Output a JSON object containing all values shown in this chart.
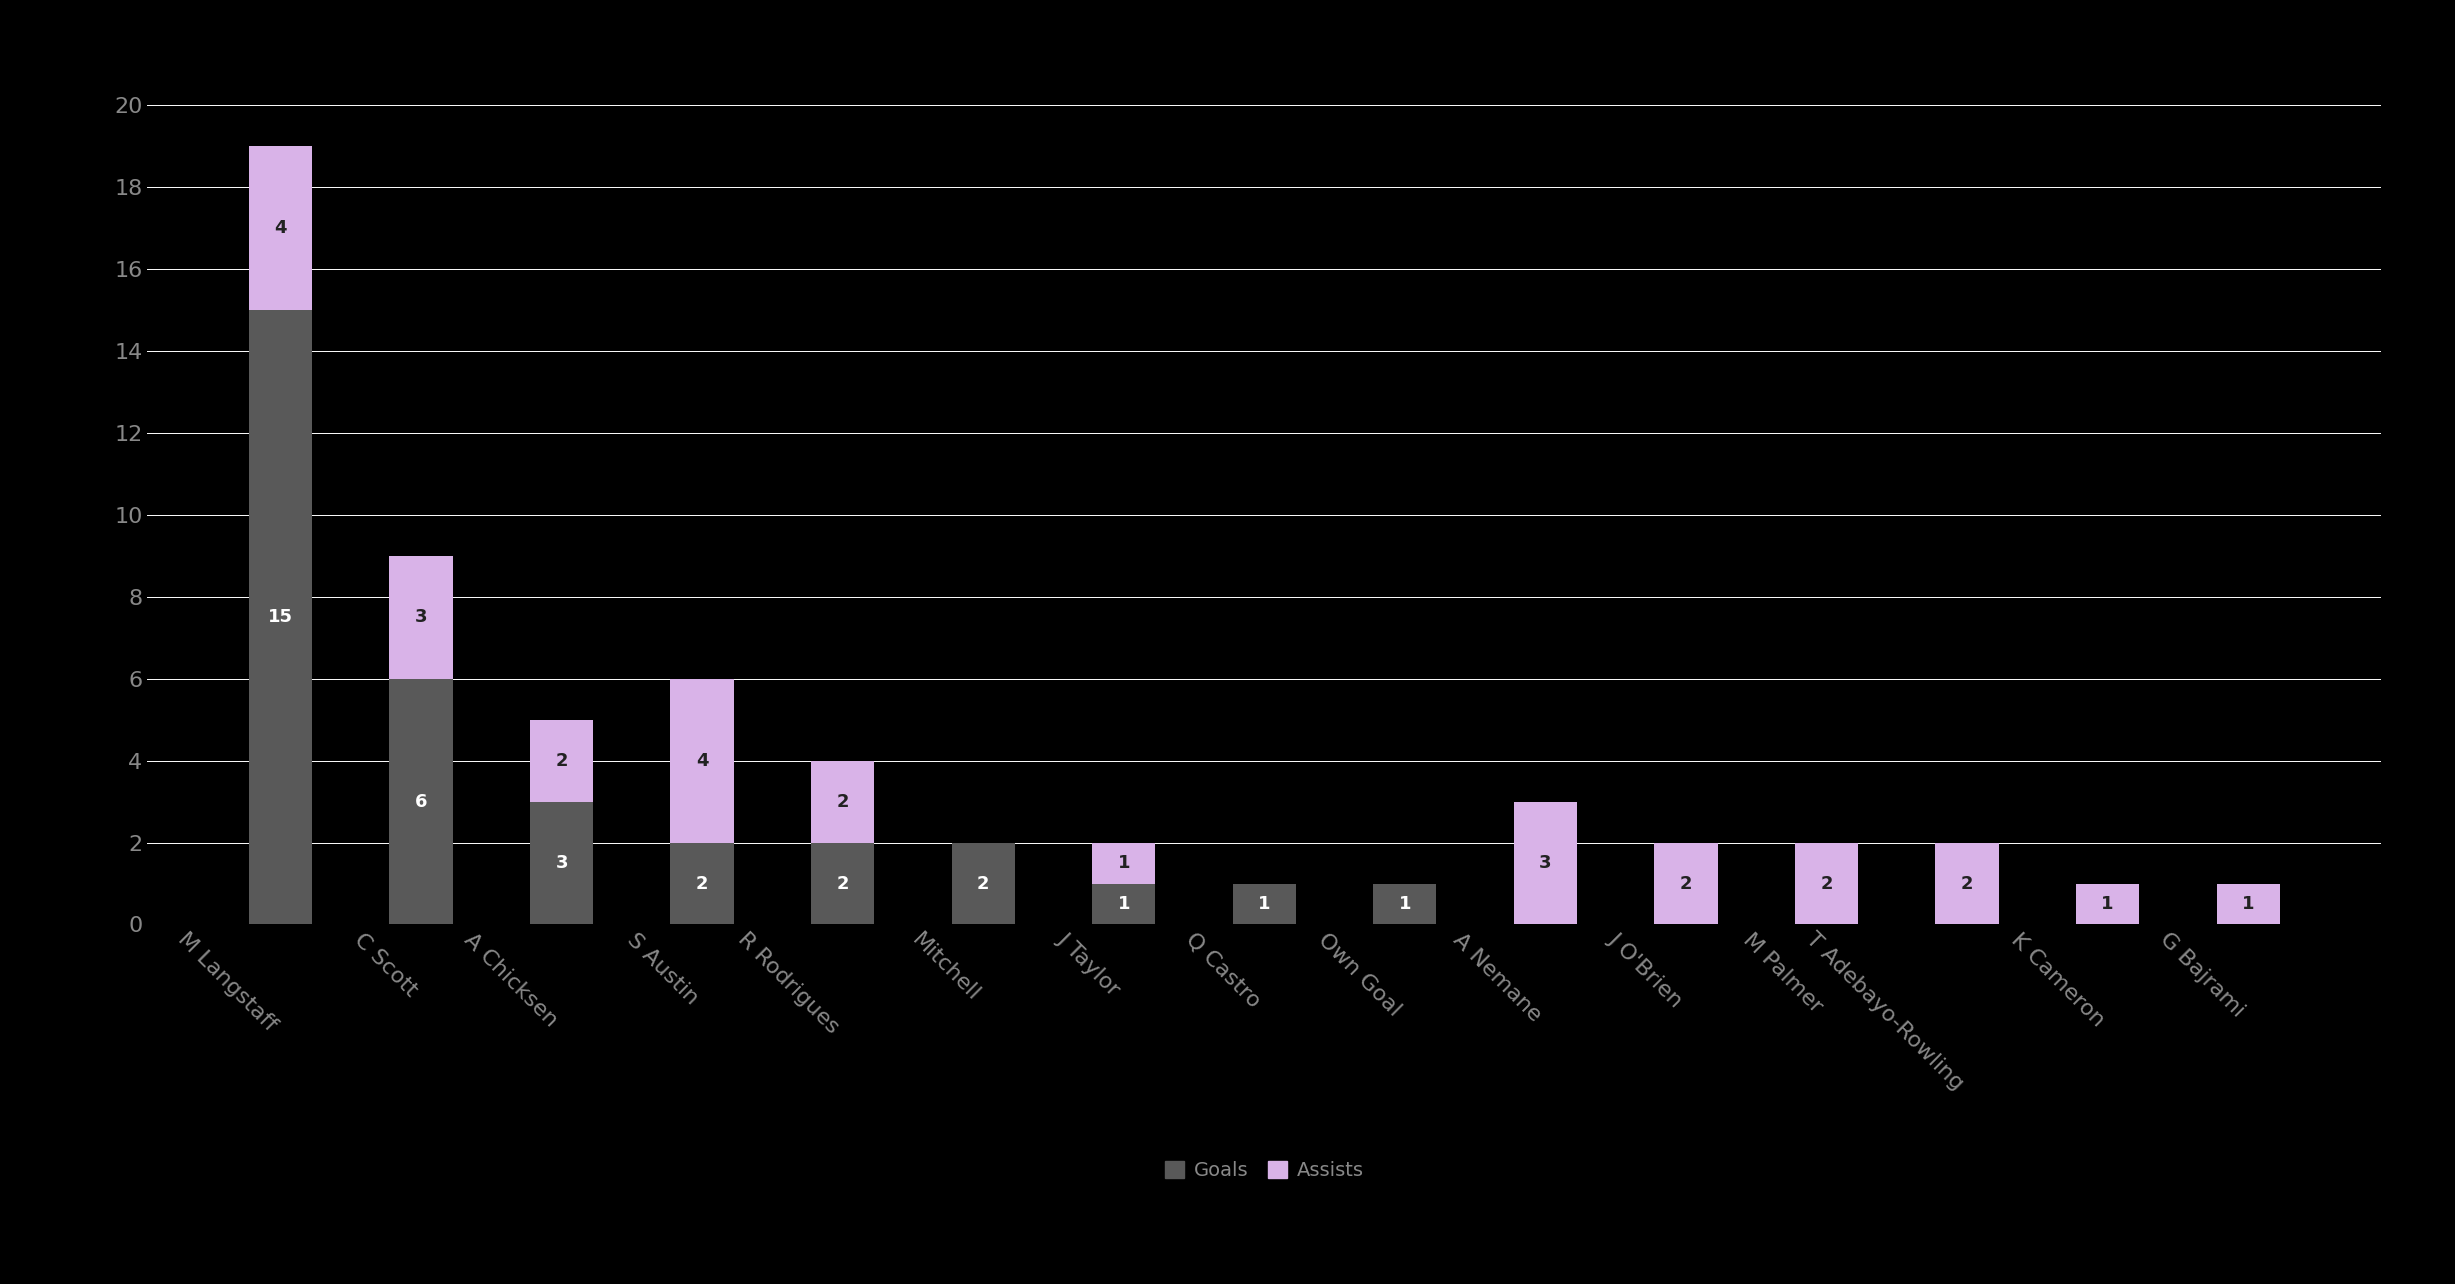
{
  "players": [
    "M Langstaff",
    "C Scott",
    "A Chicksen",
    "S Austin",
    "R Rodrigues",
    "Mitchell",
    "J Taylor",
    "Q Castro",
    "Own Goal",
    "A Nemane",
    "J O'Brien",
    "M Palmer",
    "T Adebayo-Rowling",
    "K Cameron",
    "G Bajrami"
  ],
  "goals": [
    15,
    6,
    3,
    2,
    2,
    2,
    1,
    1,
    1,
    0,
    0,
    0,
    0,
    0,
    0
  ],
  "assists": [
    4,
    3,
    2,
    4,
    2,
    0,
    1,
    0,
    0,
    3,
    2,
    2,
    2,
    1,
    1
  ],
  "goals_color": "#595959",
  "assists_color": "#d9b3e8",
  "background_color": "#000000",
  "ytick_color": "#888888",
  "xtick_color": "#888888",
  "grid_color": "#ffffff",
  "bar_label_color_goals": "#ffffff",
  "bar_label_color_assists": "#222222",
  "ylim": [
    0,
    21
  ],
  "yticks": [
    0,
    2,
    4,
    6,
    8,
    10,
    12,
    14,
    16,
    18,
    20
  ],
  "legend_goals_label": "Goals",
  "legend_assists_label": "Assists",
  "xlabel_rotation": -45,
  "bar_width": 0.45,
  "label_fontsize": 13,
  "tick_fontsize": 16,
  "legend_fontsize": 14
}
